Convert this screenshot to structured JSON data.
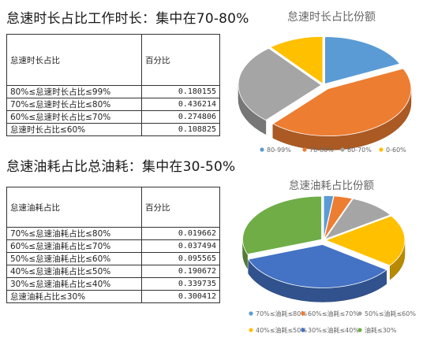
{
  "section1": {
    "heading": "怠速时长占比工作时长：集中在70-80%",
    "table": {
      "header": [
        "怠速时长占比",
        "百分比"
      ],
      "rows": [
        [
          "80%≤怠速时长占比≤99%",
          "0.180155"
        ],
        [
          "70%≤怠速时长占比≤80%",
          "0.436214"
        ],
        [
          "60%≤怠速时长占比≤70%",
          "0.274806"
        ],
        [
          "怠速时长占比≤60%",
          "0.108825"
        ]
      ]
    }
  },
  "section2": {
    "heading": "怠速油耗占比总油耗：集中在30-50%",
    "table": {
      "header": [
        "怠速油耗占比",
        "百分比"
      ],
      "rows": [
        [
          "70%≤怠速油耗占比≤80%",
          "0.019662"
        ],
        [
          "60%≤怠速油耗占比≤70%",
          "0.037494"
        ],
        [
          "50%≤怠速油耗占比≤60%",
          "0.095565"
        ],
        [
          "40%≤怠速油耗占比≤50%",
          "0.190672"
        ],
        [
          "30%≤怠速油耗占比≤40%",
          "0.339735"
        ],
        [
          "怠速油耗占比≤30%",
          "0.300412"
        ]
      ]
    }
  },
  "chart_data": [
    {
      "type": "pie",
      "title": "怠速时长占比份额",
      "categories": [
        "80-99%",
        "70-80%",
        "60-70%",
        "0-60%"
      ],
      "values": [
        0.180155,
        0.436214,
        0.274806,
        0.108825
      ],
      "colors": [
        "#5B9BD5",
        "#ED7D31",
        "#A5A5A5",
        "#FFC000"
      ],
      "legend": "bottom",
      "style": "3d-exploded"
    },
    {
      "type": "pie",
      "title": "怠速油耗占比份额",
      "categories": [
        "70%≤油耗≤80%",
        "60%≤油耗≤70%",
        "50%≤油耗≤60%",
        "40%≤油耗≤50%",
        "30%≤油耗≤40%",
        "油耗≤30%"
      ],
      "values": [
        0.019662,
        0.037494,
        0.095565,
        0.190672,
        0.339735,
        0.300412
      ],
      "colors": [
        "#5B9BD5",
        "#ED7D31",
        "#A5A5A5",
        "#FFC000",
        "#4472C4",
        "#70AD47"
      ],
      "legend": "bottom",
      "style": "3d-exploded"
    }
  ]
}
